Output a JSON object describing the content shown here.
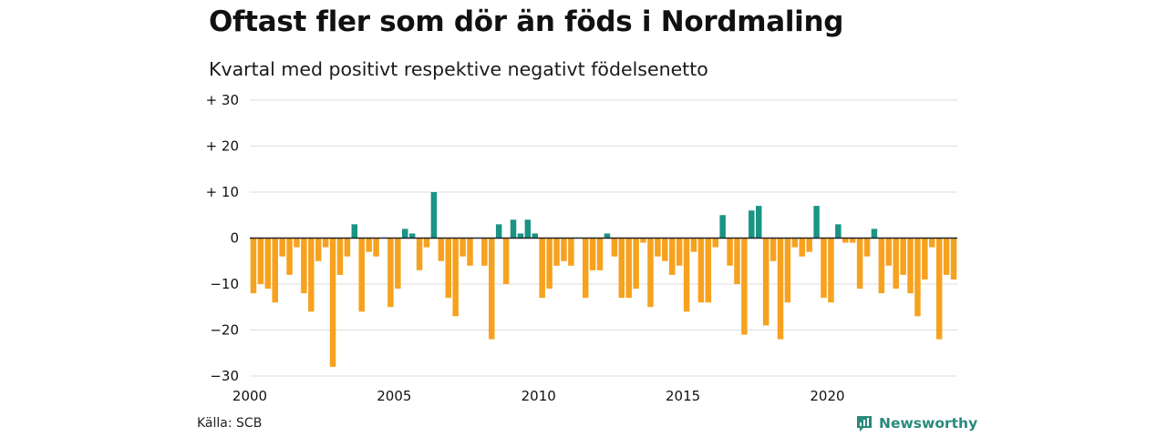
{
  "title": "Oftast fler som dör än föds i Nordmaling",
  "subtitle": "Kvartal med positivt respektive negativt födelsenetto",
  "source": "Källa: SCB",
  "brand": "Newsworthy",
  "brand_icon": "newsworthy-logo-icon",
  "colors": {
    "positive": "#1a9484",
    "negative": "#f6a21f",
    "grid": "#dddddd",
    "zero_line": "#222222",
    "brand": "#2a8a7c"
  },
  "chart_data": {
    "type": "bar",
    "title": "Oftast fler som dör än föds i Nordmaling",
    "subtitle": "Kvartal med positivt respektive negativt födelsenetto",
    "xlabel": "",
    "ylabel": "",
    "x_start": "2000 Q1",
    "x_ticks": [
      "2000",
      "2005",
      "2010",
      "2015",
      "2020"
    ],
    "y_ticks": [
      {
        "value": 30,
        "label": "+ 30"
      },
      {
        "value": 20,
        "label": "+ 20"
      },
      {
        "value": 10,
        "label": "+ 10"
      },
      {
        "value": 0,
        "label": "0"
      },
      {
        "value": -10,
        "label": "−10"
      },
      {
        "value": -20,
        "label": "−20"
      },
      {
        "value": -30,
        "label": "−30"
      }
    ],
    "ylim": [
      -30,
      30
    ],
    "grid": true,
    "legend": "none",
    "values": [
      -12,
      -10,
      -11,
      -14,
      -4,
      -8,
      -2,
      -12,
      -16,
      -5,
      -2,
      -28,
      -8,
      -4,
      3,
      -16,
      -3,
      -4,
      0,
      -15,
      -11,
      2,
      1,
      -7,
      -2,
      10,
      -5,
      -13,
      -17,
      -4,
      -6,
      0,
      -6,
      -22,
      3,
      -10,
      4,
      1,
      4,
      1,
      -13,
      -11,
      -6,
      -5,
      -6,
      0,
      -13,
      -7,
      -7,
      1,
      -4,
      -13,
      -13,
      -11,
      -1,
      -15,
      -4,
      -5,
      -8,
      -6,
      -16,
      -3,
      -14,
      -14,
      -2,
      5,
      -6,
      -10,
      -21,
      6,
      7,
      -19,
      -5,
      -22,
      -14,
      -2,
      -4,
      -3,
      7,
      -13,
      -14,
      3,
      -1,
      -1,
      -11,
      -4,
      2,
      -12,
      -6,
      -11,
      -8,
      -12,
      -17,
      -9,
      -2,
      -22,
      -8,
      -9
    ]
  }
}
